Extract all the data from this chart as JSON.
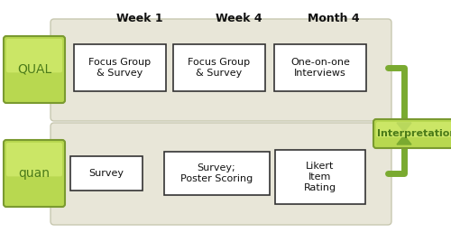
{
  "background_color": "#ffffff",
  "panel_color": "#e8e6d8",
  "panel_edge_color": "#c8c8b0",
  "green_fill": "#b8d850",
  "green_fill_top": "#d4ec70",
  "green_edge": "#7a9a30",
  "arrow_color": "#7aaa30",
  "box_bg": "#ffffff",
  "box_border": "#333333",
  "header_color": "#111111",
  "qual_text_color": "#4a7a18",
  "headers": [
    "Week 1",
    "Week 4",
    "Month 4"
  ],
  "qual_boxes": [
    "Focus Group\n& Survey",
    "Focus Group\n& Survey",
    "One-on-one\nInterviews"
  ],
  "quan_boxes": [
    "Survey",
    "Survey;\nPoster Scoring",
    "Likert\nItem\nRating"
  ],
  "qual_label": "QUAL",
  "quan_label": "quan",
  "interp_label": "Interpretation"
}
